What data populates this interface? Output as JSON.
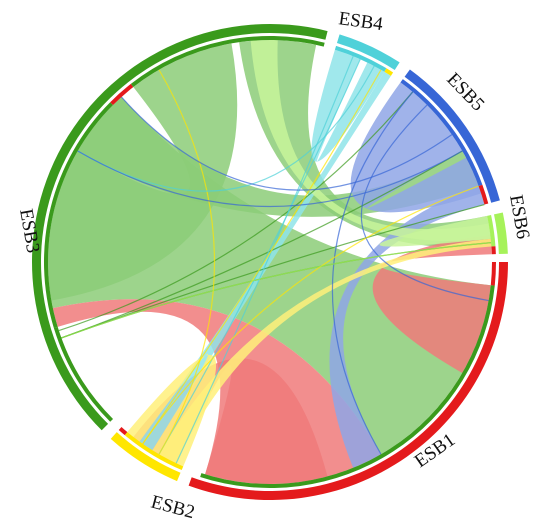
{
  "diagram": {
    "type": "chord",
    "groups": [
      {
        "id": "ESB1",
        "label": "ESB1",
        "color": "#e41a1c"
      },
      {
        "id": "ESB2",
        "label": "ESB2",
        "color": "#ffe600"
      },
      {
        "id": "ESB3",
        "label": "ESB3",
        "color": "#3a9a1c"
      },
      {
        "id": "ESB4",
        "label": "ESB4",
        "color": "#4fd1d9"
      },
      {
        "id": "ESB5",
        "label": "ESB5",
        "color": "#3766d6"
      },
      {
        "id": "ESB6",
        "label": "ESB6",
        "color": "#a6f25a"
      }
    ],
    "links": [
      {
        "source": "ESB3",
        "target": "ESB1",
        "ribbon_color": "#8ccc78"
      },
      {
        "source": "ESB3",
        "target": "ESB3",
        "ribbon_color": "#8ccc78"
      },
      {
        "source": "ESB3",
        "target": "ESB6",
        "ribbon_color": "#8ccc78"
      },
      {
        "source": "ESB3",
        "target": "ESB5",
        "ribbon_color": "#8ccc78"
      },
      {
        "source": "ESB1",
        "target": "ESB3",
        "ribbon_color": "#f07a7a"
      },
      {
        "source": "ESB1",
        "target": "ESB2",
        "ribbon_color": "#f07a7a"
      },
      {
        "source": "ESB1",
        "target": "ESB6",
        "ribbon_color": "#f07a7a"
      },
      {
        "source": "ESB5",
        "target": "ESB5",
        "ribbon_color": "#8fa6e6"
      },
      {
        "source": "ESB5",
        "target": "ESB1",
        "ribbon_color": "#8fa6e6"
      },
      {
        "source": "ESB4",
        "target": "ESB4",
        "ribbon_color": "#8fe4e9"
      },
      {
        "source": "ESB4",
        "target": "ESB2",
        "ribbon_color": "#8fe4e9"
      },
      {
        "source": "ESB2",
        "target": "ESB2",
        "ribbon_color": "#fff07a"
      },
      {
        "source": "ESB2",
        "target": "ESB6",
        "ribbon_color": "#fff07a"
      },
      {
        "source": "ESB6",
        "target": "ESB6",
        "ribbon_color": "#c8f59a"
      },
      {
        "source": "ESB6",
        "target": "ESB3",
        "ribbon_color": "#c8f59a"
      }
    ]
  }
}
